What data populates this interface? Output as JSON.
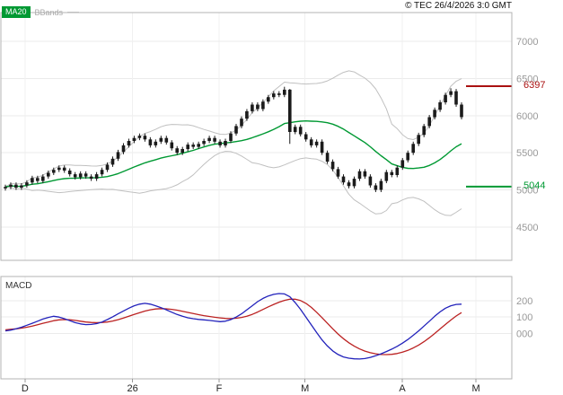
{
  "legend": {
    "ma20": "MA20",
    "bbands": "BBands"
  },
  "header": {
    "copyright": "© TEC 26/4/2026 3:0 GMT"
  },
  "colors": {
    "candle": "#1b1b1b",
    "ma20": "#009933",
    "bollinger": "#c0c0c0",
    "resistance": "#aa1111",
    "support": "#009933",
    "macd_line": "#2222bb",
    "macd_signal": "#bb2222",
    "axis_text": "#999999",
    "month_text": "#222222"
  },
  "price_panel": {
    "y_ticks": [
      7000,
      6500,
      6000,
      5500,
      5000,
      4500
    ],
    "resistance": {
      "value": 6397,
      "label": "6397"
    },
    "support": {
      "value": 5044,
      "label": "5044"
    }
  },
  "macd_panel": {
    "label": "MACD",
    "y_ticks": [
      {
        "value": 200,
        "label": "200"
      },
      {
        "value": 100,
        "label": "100"
      },
      {
        "value": 0,
        "label": "000"
      }
    ]
  },
  "x_axis": {
    "ticks": [
      {
        "label": "D",
        "pos": 0.049
      },
      {
        "label": "26",
        "pos": 0.259
      },
      {
        "label": "F",
        "pos": 0.428
      },
      {
        "label": "M",
        "pos": 0.596
      },
      {
        "label": "A",
        "pos": 0.786
      },
      {
        "label": "M",
        "pos": 0.93
      }
    ]
  },
  "chart_data": [
    {
      "type": "candlestick",
      "panel": "price",
      "ylim": [
        4050,
        7390
      ],
      "overlays": [
        {
          "name": "MA20",
          "kind": "sma",
          "window": 20,
          "color_key": "ma20"
        },
        {
          "name": "Bollinger Bands",
          "kind": "bands",
          "window": 20,
          "stdev": 2,
          "color_key": "bollinger"
        }
      ],
      "levels": [
        {
          "name": "resistance",
          "value": 6397
        },
        {
          "name": "support",
          "value": 5044
        }
      ],
      "open": [
        5020,
        5040,
        5070,
        5030,
        5060,
        5100,
        5160,
        5120,
        5180,
        5230,
        5270,
        5300,
        5260,
        5210,
        5170,
        5220,
        5180,
        5150,
        5210,
        5270,
        5340,
        5420,
        5510,
        5600,
        5660,
        5700,
        5730,
        5680,
        5600,
        5650,
        5700,
        5640,
        5560,
        5500,
        5550,
        5610,
        5580,
        5620,
        5660,
        5700,
        5650,
        5600,
        5660,
        5760,
        5860,
        5960,
        6060,
        6150,
        6090,
        6190,
        6250,
        6300,
        6280,
        6350,
        5780,
        5850,
        5750,
        5680,
        5600,
        5650,
        5500,
        5380,
        5280,
        5180,
        5100,
        5050,
        5150,
        5250,
        5180,
        5060,
        5000,
        5120,
        5240,
        5200,
        5300,
        5400,
        5500,
        5620,
        5740,
        5860,
        5980,
        6080,
        6180,
        6280,
        6330,
        6150
      ],
      "high": [
        5070,
        5100,
        5100,
        5090,
        5130,
        5190,
        5190,
        5210,
        5260,
        5300,
        5330,
        5330,
        5290,
        5240,
        5250,
        5250,
        5210,
        5240,
        5300,
        5370,
        5450,
        5540,
        5630,
        5690,
        5730,
        5760,
        5760,
        5710,
        5680,
        5730,
        5730,
        5670,
        5590,
        5580,
        5640,
        5640,
        5650,
        5690,
        5730,
        5730,
        5680,
        5690,
        5790,
        5890,
        5990,
        6090,
        6180,
        6180,
        6220,
        6280,
        6330,
        6330,
        6390,
        6360,
        5880,
        5880,
        5780,
        5710,
        5680,
        5680,
        5530,
        5410,
        5310,
        5210,
        5130,
        5180,
        5280,
        5280,
        5210,
        5090,
        5150,
        5270,
        5270,
        5330,
        5430,
        5530,
        5650,
        5770,
        5890,
        6010,
        6110,
        6210,
        6310,
        6370,
        6360,
        6180
      ],
      "low": [
        4990,
        5010,
        5000,
        5000,
        5030,
        5070,
        5090,
        5090,
        5150,
        5200,
        5240,
        5230,
        5180,
        5140,
        5140,
        5150,
        5120,
        5120,
        5180,
        5240,
        5310,
        5390,
        5480,
        5570,
        5630,
        5670,
        5650,
        5570,
        5570,
        5620,
        5610,
        5530,
        5470,
        5470,
        5520,
        5550,
        5550,
        5590,
        5630,
        5620,
        5570,
        5570,
        5630,
        5730,
        5830,
        5930,
        6030,
        6060,
        6060,
        6160,
        6220,
        6250,
        6250,
        5620,
        5750,
        5720,
        5650,
        5570,
        5570,
        5470,
        5350,
        5250,
        5150,
        5070,
        5020,
        5020,
        5120,
        5150,
        5030,
        4970,
        4970,
        5090,
        5170,
        5170,
        5270,
        5370,
        5470,
        5590,
        5710,
        5830,
        5950,
        6050,
        6150,
        6250,
        6120,
        5950
      ],
      "close": [
        5040,
        5070,
        5030,
        5060,
        5100,
        5160,
        5120,
        5180,
        5230,
        5270,
        5300,
        5260,
        5210,
        5170,
        5220,
        5180,
        5150,
        5210,
        5270,
        5340,
        5420,
        5510,
        5600,
        5660,
        5700,
        5730,
        5680,
        5600,
        5650,
        5700,
        5640,
        5560,
        5500,
        5550,
        5610,
        5580,
        5620,
        5660,
        5700,
        5650,
        5600,
        5660,
        5760,
        5860,
        5960,
        6060,
        6150,
        6090,
        6190,
        6250,
        6300,
        6280,
        6350,
        5780,
        5850,
        5750,
        5680,
        5600,
        5650,
        5500,
        5380,
        5280,
        5180,
        5100,
        5050,
        5150,
        5250,
        5180,
        5060,
        5000,
        5120,
        5240,
        5200,
        5300,
        5400,
        5500,
        5620,
        5740,
        5860,
        5980,
        6080,
        6180,
        6280,
        6330,
        6150,
        5980
      ]
    },
    {
      "type": "line",
      "panel": "macd",
      "ylim": [
        -280,
        350
      ],
      "series": [
        {
          "name": "Signal",
          "color_key": "macd_signal",
          "values": [
            22,
            25,
            28,
            32,
            38,
            45,
            53,
            62,
            70,
            78,
            83,
            85,
            84,
            80,
            75,
            70,
            67,
            66,
            67,
            70,
            76,
            84,
            94,
            105,
            116,
            127,
            137,
            145,
            150,
            152,
            151,
            148,
            143,
            136,
            129,
            122,
            115,
            109,
            104,
            99,
            95,
            92,
            91,
            93,
            98,
            106,
            117,
            131,
            147,
            163,
            178,
            192,
            203,
            210,
            210,
            202,
            185,
            160,
            130,
            97,
            62,
            28,
            -4,
            -33,
            -58,
            -79,
            -96,
            -109,
            -119,
            -126,
            -130,
            -131,
            -129,
            -124,
            -116,
            -105,
            -90,
            -72,
            -51,
            -27,
            -1,
            27,
            55,
            82,
            107,
            128
          ]
        },
        {
          "name": "MACD",
          "color_key": "macd_line",
          "values": [
            15,
            20,
            28,
            38,
            50,
            62,
            75,
            88,
            98,
            105,
            100,
            90,
            78,
            66,
            58,
            54,
            55,
            60,
            70,
            85,
            102,
            120,
            138,
            155,
            170,
            180,
            185,
            180,
            170,
            158,
            145,
            130,
            116,
            105,
            96,
            90,
            86,
            83,
            80,
            76,
            72,
            75,
            85,
            100,
            120,
            145,
            170,
            195,
            215,
            230,
            240,
            245,
            243,
            225,
            190,
            148,
            100,
            52,
            5,
            -40,
            -78,
            -108,
            -130,
            -145,
            -153,
            -157,
            -158,
            -155,
            -148,
            -138,
            -126,
            -112,
            -97,
            -80,
            -60,
            -38,
            -12,
            15,
            45,
            75,
            105,
            132,
            155,
            170,
            178,
            180
          ]
        }
      ]
    }
  ]
}
